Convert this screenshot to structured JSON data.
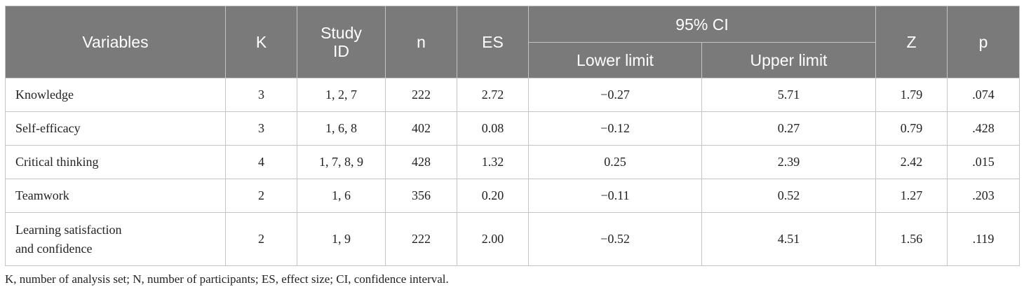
{
  "table": {
    "headers": {
      "variables": "Variables",
      "k": "K",
      "study_id_line1": "Study",
      "study_id_line2": "ID",
      "n": "n",
      "es": "ES",
      "ci": "95% CI",
      "lower": "Lower limit",
      "upper": "Upper limit",
      "z": "Z",
      "p": "p"
    },
    "rows": [
      {
        "variable": "Knowledge",
        "variable_line2": "",
        "k": "3",
        "study_id": "1, 2, 7",
        "n": "222",
        "es": "2.72",
        "lower": "−0.27",
        "upper": "5.71",
        "z": "1.79",
        "p": ".074"
      },
      {
        "variable": "Self-efficacy",
        "variable_line2": "",
        "k": "3",
        "study_id": "1, 6, 8",
        "n": "402",
        "es": "0.08",
        "lower": "−0.12",
        "upper": "0.27",
        "z": "0.79",
        "p": ".428"
      },
      {
        "variable": "Critical thinking",
        "variable_line2": "",
        "k": "4",
        "study_id": "1, 7, 8, 9",
        "n": "428",
        "es": "1.32",
        "lower": "0.25",
        "upper": "2.39",
        "z": "2.42",
        "p": ".015"
      },
      {
        "variable": "Teamwork",
        "variable_line2": "",
        "k": "2",
        "study_id": "1, 6",
        "n": "356",
        "es": "0.20",
        "lower": "−0.11",
        "upper": "0.52",
        "z": "1.27",
        "p": ".203"
      },
      {
        "variable": "Learning satisfaction",
        "variable_line2": "and confidence",
        "k": "2",
        "study_id": "1, 9",
        "n": "222",
        "es": "2.00",
        "lower": "−0.52",
        "upper": "4.51",
        "z": "1.56",
        "p": ".119"
      }
    ]
  },
  "footnote": "K, number of analysis set; N, number of participants; ES, effect size; CI, confidence interval."
}
